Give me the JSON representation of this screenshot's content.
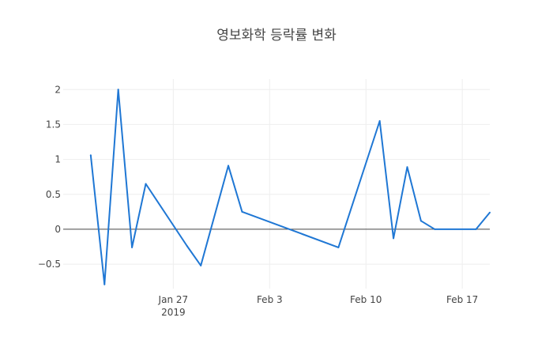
{
  "chart_data": {
    "type": "line",
    "title": "영보화학 등락률 변화",
    "xlabel": "",
    "ylabel": "",
    "xlim": [
      "2019-01-19",
      "2019-02-19"
    ],
    "ylim": [
      -0.85,
      2.15
    ],
    "grid": true,
    "zero_line": true,
    "x_ticks": [
      {
        "value": "2019-01-27",
        "label": "Jan 27",
        "sublabel": "2019"
      },
      {
        "value": "2019-02-03",
        "label": "Feb 3",
        "sublabel": ""
      },
      {
        "value": "2019-02-10",
        "label": "Feb 10",
        "sublabel": ""
      },
      {
        "value": "2019-02-17",
        "label": "Feb 17",
        "sublabel": ""
      }
    ],
    "y_ticks": [
      {
        "value": 2,
        "label": "2"
      },
      {
        "value": 1.5,
        "label": "1.5"
      },
      {
        "value": 1,
        "label": "1"
      },
      {
        "value": 0.5,
        "label": "0.5"
      },
      {
        "value": 0,
        "label": "0"
      },
      {
        "value": -0.5,
        "label": "−0.5"
      }
    ],
    "series": [
      {
        "color": "#1f77d4",
        "points": [
          {
            "x": "2019-01-21",
            "y": 1.06
          },
          {
            "x": "2019-01-22",
            "y": -0.79
          },
          {
            "x": "2019-01-23",
            "y": 2.0
          },
          {
            "x": "2019-01-24",
            "y": -0.26
          },
          {
            "x": "2019-01-25",
            "y": 0.65
          },
          {
            "x": "2019-01-28",
            "y": -0.24
          },
          {
            "x": "2019-01-29",
            "y": -0.52
          },
          {
            "x": "2019-01-31",
            "y": 0.91
          },
          {
            "x": "2019-02-01",
            "y": 0.25
          },
          {
            "x": "2019-02-08",
            "y": -0.26
          },
          {
            "x": "2019-02-11",
            "y": 1.55
          },
          {
            "x": "2019-02-12",
            "y": -0.13
          },
          {
            "x": "2019-02-13",
            "y": 0.89
          },
          {
            "x": "2019-02-14",
            "y": 0.12
          },
          {
            "x": "2019-02-15",
            "y": 0.0
          },
          {
            "x": "2019-02-18",
            "y": 0.0
          },
          {
            "x": "2019-02-19",
            "y": 0.24
          }
        ]
      }
    ]
  }
}
